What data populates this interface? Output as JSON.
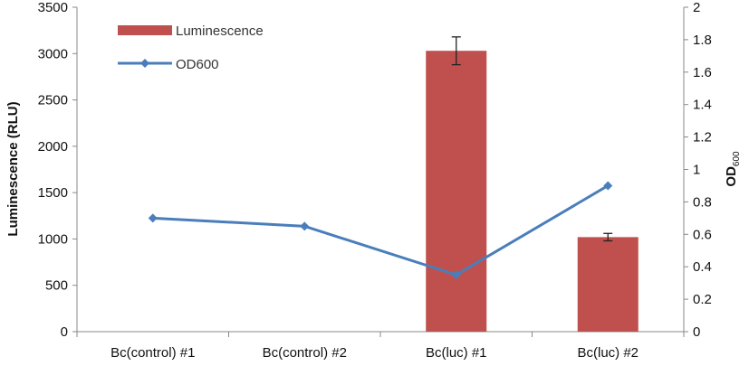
{
  "colors": {
    "bar": "#c0504d",
    "line": "#4a7ebb",
    "axis": "#888888",
    "text": "#111111"
  },
  "chart_data": {
    "type": "bar",
    "categories": [
      "Bc(control) #1",
      "Bc(control) #2",
      "Bc(luc) #1",
      "Bc(luc) #2"
    ],
    "series": [
      {
        "name": "Luminescence",
        "type": "bar",
        "axis": "left",
        "values": [
          0,
          0,
          3030,
          1020
        ],
        "error": [
          0,
          0,
          150,
          40
        ]
      },
      {
        "name": "OD600",
        "type": "line",
        "axis": "right",
        "marker": "diamond",
        "values": [
          0.7,
          0.65,
          0.35,
          0.9
        ]
      }
    ],
    "ylabel": "Luminescence (RLU)",
    "y2label_main": "OD",
    "y2label_sub": "600",
    "ylim": [
      0,
      3500
    ],
    "yticks": [
      "0",
      "500",
      "1000",
      "1500",
      "2000",
      "2500",
      "3000",
      "3500"
    ],
    "y2lim": [
      0,
      2
    ],
    "y2ticks": [
      "0",
      "0.2",
      "0.4",
      "0.6",
      "0.8",
      "1",
      "1.2",
      "1.4",
      "1.6",
      "1.8",
      "2"
    ],
    "grid": false,
    "legend": "top-left"
  }
}
